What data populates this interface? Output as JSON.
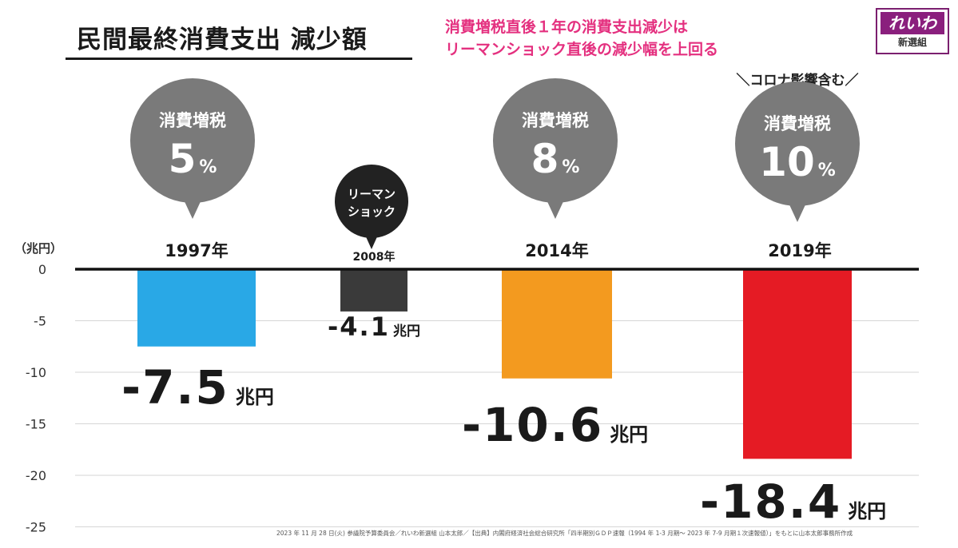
{
  "title": "民間最終消費支出 減少額",
  "headline": {
    "line1": "消費増税直後１年の消費支出減少は",
    "line2": "リーマンショック直後の減少幅を上回る"
  },
  "logo": {
    "mark": "れいわ",
    "sub": "新選組"
  },
  "corona_note": "＼コロナ影響含む／",
  "source_note": "2023 年 11 月 28 日(火) 参議院予算委員会／れいわ新選組 山本太郎／【出典】内閣府経済社会総合研究所「四半期別ＧＤＰ速報（1994 年 1-3 月期～ 2023 年 7-9 月期１次速報値）」をもとに山本太郎事務所作成",
  "colors": {
    "bar_1997": "#29a8e6",
    "bar_2008": "#3a3a3a",
    "bar_2014": "#f39a1f",
    "bar_2019": "#e51b24",
    "bubble_gray": "#7a7a7a",
    "bubble_dark": "#222222",
    "headline": "#e4307f"
  },
  "chart_data": {
    "type": "bar",
    "categories": [
      "1997年",
      "2008年",
      "2014年",
      "2019年"
    ],
    "values": [
      -7.5,
      -4.1,
      -10.6,
      -18.4
    ],
    "value_labels": [
      "-7.5",
      "-4.1",
      "-10.6",
      "-18.4"
    ],
    "value_unit": "兆円",
    "ylabel": "（兆円）",
    "ylim": [
      -25,
      0
    ],
    "yticks": [
      "0",
      "-5",
      "-10",
      "-15",
      "-20",
      "-25"
    ],
    "ytick_values": [
      0,
      -5,
      -10,
      -15,
      -20,
      -25
    ],
    "grid": true,
    "bubbles": [
      {
        "line1": "消費増税",
        "rate": "5",
        "unit": "%"
      },
      {
        "line1": "リーマン",
        "line2": "ショック"
      },
      {
        "line1": "消費増税",
        "rate": "8",
        "unit": "%"
      },
      {
        "line1": "消費増税",
        "rate": "10",
        "unit": "%"
      }
    ]
  }
}
